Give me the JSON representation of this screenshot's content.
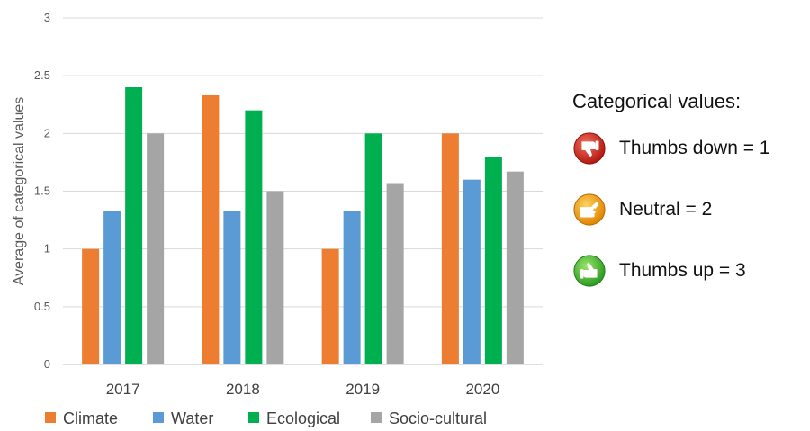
{
  "chart_data": {
    "type": "bar",
    "categories": [
      "2017",
      "2018",
      "2019",
      "2020"
    ],
    "series": [
      {
        "name": "Climate",
        "color": "#ED7D31",
        "values": [
          1.0,
          2.33,
          1.0,
          2.0
        ]
      },
      {
        "name": "Water",
        "color": "#5B9BD5",
        "values": [
          1.33,
          1.33,
          1.33,
          1.6
        ]
      },
      {
        "name": "Ecological",
        "color": "#00B050",
        "values": [
          2.4,
          2.2,
          2.0,
          1.8
        ]
      },
      {
        "name": "Socio-cultural",
        "color": "#A5A5A5",
        "values": [
          2.0,
          1.5,
          1.57,
          1.67
        ]
      }
    ],
    "ylabel": "Average of categorical values",
    "ylim": [
      0,
      3
    ],
    "yticks": [
      "0",
      "0.5",
      "1",
      "1.5",
      "2",
      "2.5",
      "3"
    ],
    "grid": true,
    "legend_position": "bottom"
  },
  "categorical_legend": {
    "title": "Categorical values:",
    "items": [
      {
        "label": "Thumbs down = 1",
        "icon": "thumbs-down-icon",
        "color": "#D7261E"
      },
      {
        "label": "Neutral = 2",
        "icon": "neutral-hand-icon",
        "color": "#F0A30A"
      },
      {
        "label": "Thumbs up = 3",
        "icon": "thumbs-up-icon",
        "color": "#3DB53A"
      }
    ]
  }
}
